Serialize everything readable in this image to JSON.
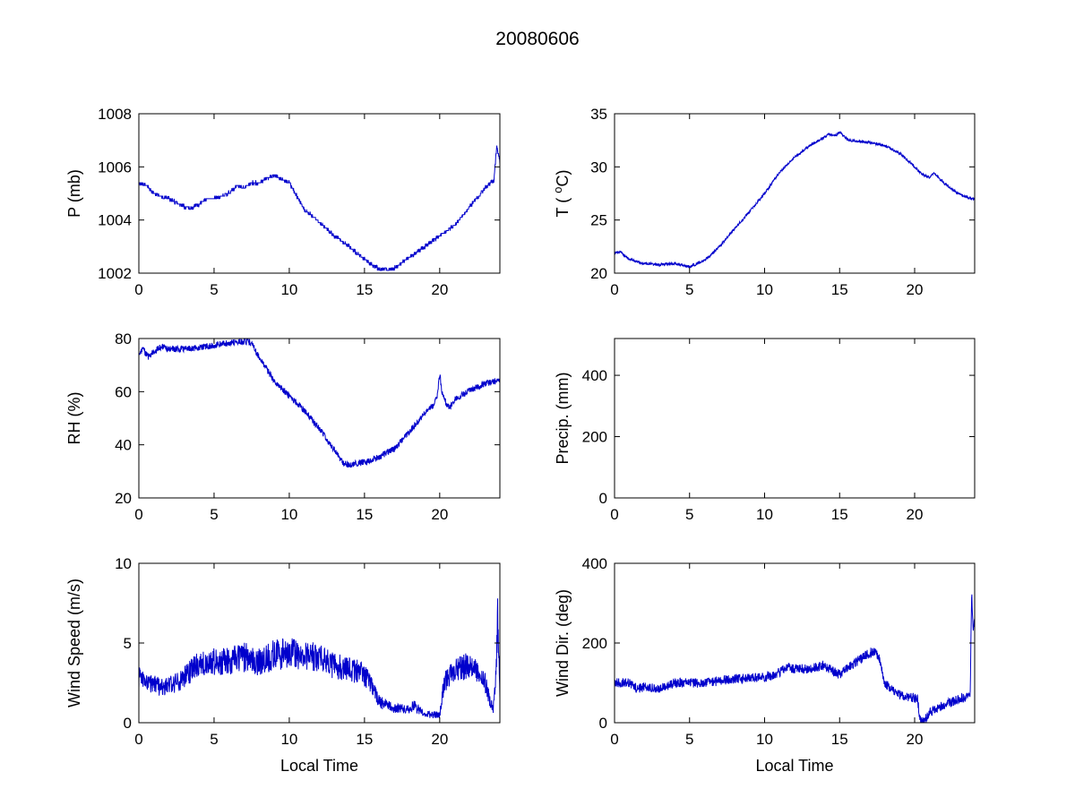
{
  "figure_title": "20080606",
  "line_color": "#0000CC",
  "axis_color": "#000000",
  "chart_data": [
    {
      "id": "pressure",
      "type": "line",
      "title": "",
      "ylabel": "P (mb)",
      "xlabel": "",
      "xlim": [
        0,
        24
      ],
      "xticks": [
        0,
        5,
        10,
        15,
        20
      ],
      "ylim": [
        1002,
        1008
      ],
      "yticks": [
        1002,
        1004,
        1006,
        1008
      ],
      "grid": false,
      "legend": "none",
      "keypoints": [
        [
          0,
          1005.4
        ],
        [
          0.5,
          1005.3
        ],
        [
          1,
          1005.0
        ],
        [
          2,
          1004.8
        ],
        [
          3,
          1004.5
        ],
        [
          3.5,
          1004.45
        ],
        [
          4,
          1004.6
        ],
        [
          4.5,
          1004.8
        ],
        [
          5,
          1004.8
        ],
        [
          6,
          1005.0
        ],
        [
          6.5,
          1005.3
        ],
        [
          7,
          1005.2
        ],
        [
          7.5,
          1005.4
        ],
        [
          8,
          1005.4
        ],
        [
          9,
          1005.7
        ],
        [
          9.5,
          1005.5
        ],
        [
          10,
          1005.4
        ],
        [
          10.5,
          1004.9
        ],
        [
          11,
          1004.4
        ],
        [
          12,
          1003.9
        ],
        [
          13,
          1003.4
        ],
        [
          14,
          1003.0
        ],
        [
          15,
          1002.5
        ],
        [
          16,
          1002.15
        ],
        [
          16.5,
          1002.1
        ],
        [
          17,
          1002.2
        ],
        [
          18,
          1002.6
        ],
        [
          19,
          1003.0
        ],
        [
          20,
          1003.4
        ],
        [
          21,
          1003.8
        ],
        [
          22,
          1004.5
        ],
        [
          23,
          1005.2
        ],
        [
          23.6,
          1005.5
        ],
        [
          23.8,
          1006.8
        ],
        [
          24,
          1006.2
        ]
      ],
      "noise_amp": 0.06,
      "quantize": 0.1,
      "noise_prop": false
    },
    {
      "id": "temperature",
      "type": "line",
      "title": "",
      "ylabel": "T ( oC)",
      "ylabel_parts": [
        {
          "t": "T ( "
        },
        {
          "t": "o",
          "sup": true
        },
        {
          "t": "C)"
        }
      ],
      "xlabel": "",
      "xlim": [
        0,
        24
      ],
      "xticks": [
        0,
        5,
        10,
        15,
        20
      ],
      "ylim": [
        20,
        35
      ],
      "yticks": [
        20,
        25,
        30,
        35
      ],
      "grid": false,
      "legend": "none",
      "keypoints": [
        [
          0,
          21.9
        ],
        [
          0.4,
          22.0
        ],
        [
          1,
          21.3
        ],
        [
          2,
          20.9
        ],
        [
          3,
          20.8
        ],
        [
          4,
          20.9
        ],
        [
          5,
          20.6
        ],
        [
          6,
          21.2
        ],
        [
          6.5,
          21.8
        ],
        [
          7,
          22.5
        ],
        [
          8,
          24.2
        ],
        [
          9,
          25.8
        ],
        [
          10,
          27.5
        ],
        [
          11,
          29.5
        ],
        [
          12,
          30.9
        ],
        [
          13,
          32.0
        ],
        [
          14,
          32.8
        ],
        [
          14.3,
          33.1
        ],
        [
          14.7,
          32.9
        ],
        [
          15,
          33.3
        ],
        [
          15.5,
          32.6
        ],
        [
          16,
          32.4
        ],
        [
          17,
          32.3
        ],
        [
          18,
          32.0
        ],
        [
          19,
          31.3
        ],
        [
          20,
          30.0
        ],
        [
          20.5,
          29.3
        ],
        [
          21,
          29.0
        ],
        [
          21.3,
          29.4
        ],
        [
          22,
          28.4
        ],
        [
          23,
          27.4
        ],
        [
          24,
          26.9
        ]
      ],
      "noise_amp": 0.12,
      "quantize": 0,
      "noise_prop": false
    },
    {
      "id": "humidity",
      "type": "line",
      "title": "",
      "ylabel": "RH (%)",
      "xlabel": "",
      "xlim": [
        0,
        24
      ],
      "xticks": [
        0,
        5,
        10,
        15,
        20
      ],
      "ylim": [
        20,
        80
      ],
      "yticks": [
        20,
        40,
        60,
        80
      ],
      "grid": false,
      "legend": "none",
      "keypoints": [
        [
          0,
          74
        ],
        [
          0.3,
          76
        ],
        [
          0.6,
          73
        ],
        [
          1,
          75
        ],
        [
          1.5,
          77
        ],
        [
          2,
          76
        ],
        [
          3,
          76
        ],
        [
          4,
          76.5
        ],
        [
          5,
          77.5
        ],
        [
          6,
          78.5
        ],
        [
          7,
          79
        ],
        [
          7.4,
          78.5
        ],
        [
          7.6,
          77
        ],
        [
          8,
          73
        ],
        [
          9,
          64
        ],
        [
          10,
          58.5
        ],
        [
          11,
          53
        ],
        [
          12,
          46
        ],
        [
          13,
          38
        ],
        [
          13.6,
          33
        ],
        [
          14,
          32.5
        ],
        [
          15,
          33.5
        ],
        [
          16,
          35.5
        ],
        [
          17,
          38.5
        ],
        [
          18,
          45
        ],
        [
          19,
          52
        ],
        [
          19.6,
          55
        ],
        [
          19.85,
          59
        ],
        [
          20,
          67
        ],
        [
          20.15,
          60
        ],
        [
          20.4,
          56
        ],
        [
          20.7,
          54
        ],
        [
          21,
          57
        ],
        [
          22,
          60.5
        ],
        [
          23,
          63
        ],
        [
          24,
          64
        ]
      ],
      "noise_amp": 1.2,
      "quantize": 0,
      "noise_prop": false
    },
    {
      "id": "precipitation",
      "type": "line",
      "title": "",
      "ylabel": "Precip. (mm)",
      "xlabel": "",
      "xlim": [
        0,
        24
      ],
      "xticks": [
        0,
        5,
        10,
        15,
        20
      ],
      "ylim": [
        0,
        520
      ],
      "yticks": [
        0,
        200,
        400
      ],
      "grid": false,
      "legend": "none",
      "keypoints": [
        [
          0,
          0
        ],
        [
          24,
          0
        ]
      ],
      "noise_amp": 0,
      "quantize": 0,
      "noise_prop": false
    },
    {
      "id": "wind-speed",
      "type": "line",
      "title": "",
      "ylabel": "Wind Speed (m/s)",
      "xlabel": "Local Time",
      "xlim": [
        0,
        24
      ],
      "xticks": [
        0,
        5,
        10,
        15,
        20
      ],
      "ylim": [
        0,
        10
      ],
      "yticks": [
        0,
        5,
        10
      ],
      "grid": false,
      "legend": "none",
      "keypoints": [
        [
          0,
          2.8
        ],
        [
          1,
          2.4
        ],
        [
          1.5,
          2.2
        ],
        [
          2,
          2.3
        ],
        [
          3,
          2.8
        ],
        [
          4,
          3.7
        ],
        [
          5,
          3.8
        ],
        [
          6,
          3.9
        ],
        [
          7,
          4.1
        ],
        [
          8,
          3.8
        ],
        [
          9,
          4.3
        ],
        [
          10,
          4.3
        ],
        [
          11,
          4.3
        ],
        [
          12,
          4.0
        ],
        [
          13,
          3.5
        ],
        [
          14,
          3.4
        ],
        [
          15,
          3.0
        ],
        [
          15.5,
          2.2
        ],
        [
          16,
          1.3
        ],
        [
          17,
          0.9
        ],
        [
          18,
          0.9
        ],
        [
          18.3,
          1.1
        ],
        [
          19,
          0.5
        ],
        [
          20,
          0.5
        ],
        [
          20.3,
          2.5
        ],
        [
          21,
          3.3
        ],
        [
          22,
          3.6
        ],
        [
          23,
          2.6
        ],
        [
          23.3,
          1.5
        ],
        [
          23.55,
          0.8
        ],
        [
          23.75,
          3.0
        ],
        [
          23.85,
          6.6
        ],
        [
          24,
          2.0
        ]
      ],
      "noise_amp": 0.9,
      "quantize": 0,
      "noise_prop": true
    },
    {
      "id": "wind-direction",
      "type": "line",
      "title": "",
      "ylabel": "Wind Dir. (deg)",
      "xlabel": "Local Time",
      "xlim": [
        0,
        24
      ],
      "xticks": [
        0,
        5,
        10,
        15,
        20
      ],
      "ylim": [
        0,
        400
      ],
      "yticks": [
        0,
        200,
        400
      ],
      "grid": false,
      "legend": "none",
      "keypoints": [
        [
          0,
          100
        ],
        [
          1,
          100
        ],
        [
          1.5,
          85
        ],
        [
          2,
          90
        ],
        [
          3,
          85
        ],
        [
          4,
          100
        ],
        [
          5,
          100
        ],
        [
          6,
          100
        ],
        [
          7,
          105
        ],
        [
          8,
          110
        ],
        [
          9,
          112
        ],
        [
          10,
          115
        ],
        [
          11,
          125
        ],
        [
          11.5,
          140
        ],
        [
          12,
          135
        ],
        [
          13,
          135
        ],
        [
          14,
          145
        ],
        [
          14.5,
          130
        ],
        [
          15,
          120
        ],
        [
          16,
          150
        ],
        [
          17,
          175
        ],
        [
          17.3,
          180
        ],
        [
          17.6,
          165
        ],
        [
          18,
          100
        ],
        [
          19,
          70
        ],
        [
          20,
          62
        ],
        [
          20.2,
          60
        ],
        [
          20.35,
          5
        ],
        [
          20.6,
          2
        ],
        [
          21,
          25
        ],
        [
          22,
          45
        ],
        [
          23,
          60
        ],
        [
          23.7,
          65
        ],
        [
          23.8,
          330
        ],
        [
          23.9,
          240
        ],
        [
          24,
          255
        ]
      ],
      "noise_amp": 12,
      "quantize": 0,
      "noise_prop": false
    }
  ]
}
